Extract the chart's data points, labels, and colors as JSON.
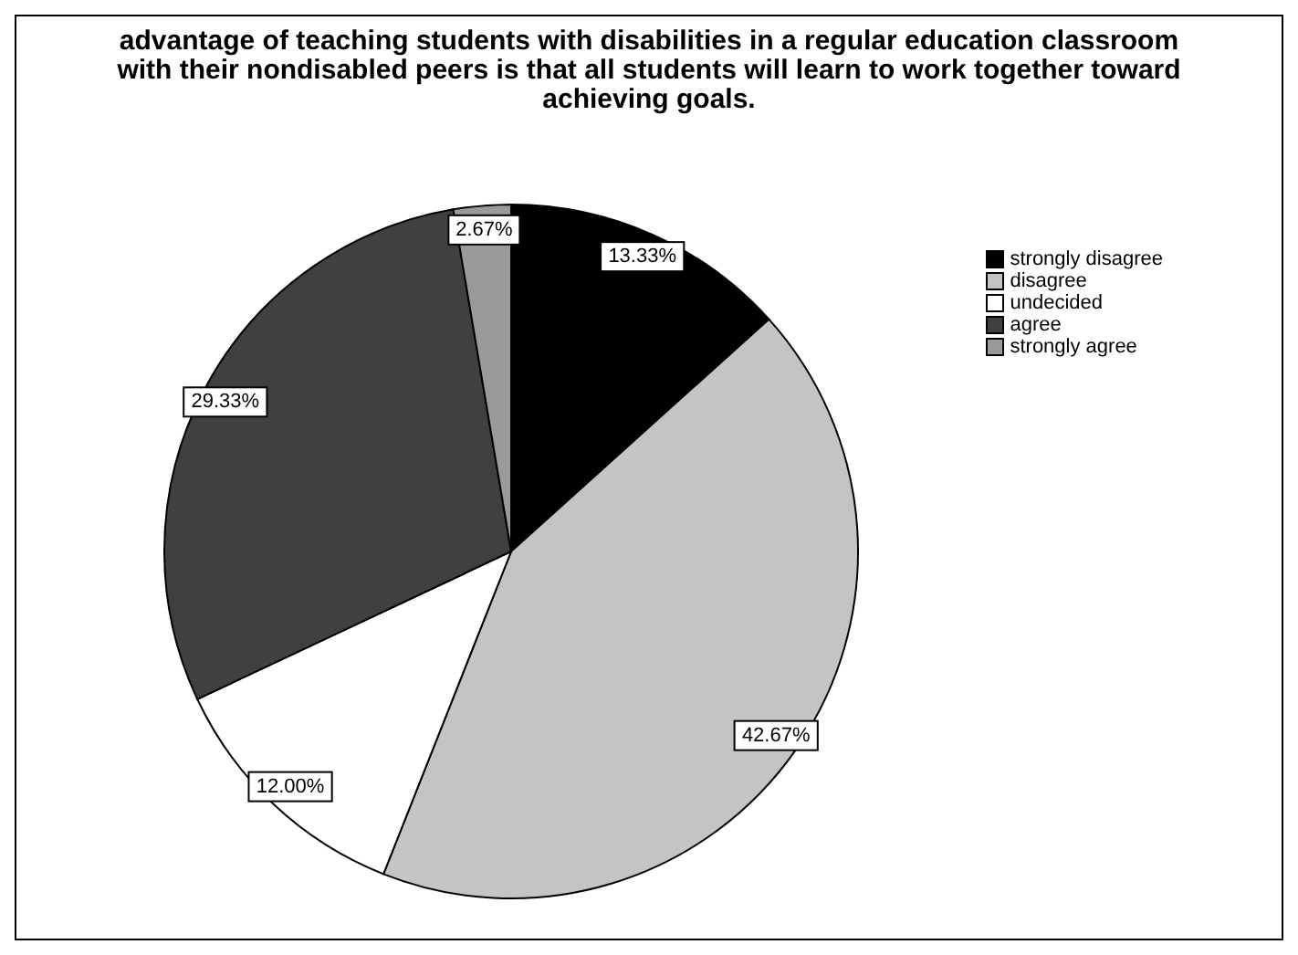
{
  "chart_data": {
    "type": "pie",
    "title": "advantage of teaching students with disabilities in a regular education classroom with their nondisabled peers is that all students will learn to work together toward achieving goals.",
    "categories": [
      "strongly disagree",
      "disagree",
      "undecided",
      "agree",
      "strongly agree"
    ],
    "values": [
      13.33,
      42.67,
      12.0,
      29.33,
      2.67
    ],
    "value_labels": [
      "13.33%",
      "42.67%",
      "12.00%",
      "29.33%",
      "2.67%"
    ],
    "colors": [
      "#000000",
      "#c4c4c4",
      "#ffffff",
      "#404040",
      "#9a9a9a"
    ],
    "legend": "top right"
  }
}
